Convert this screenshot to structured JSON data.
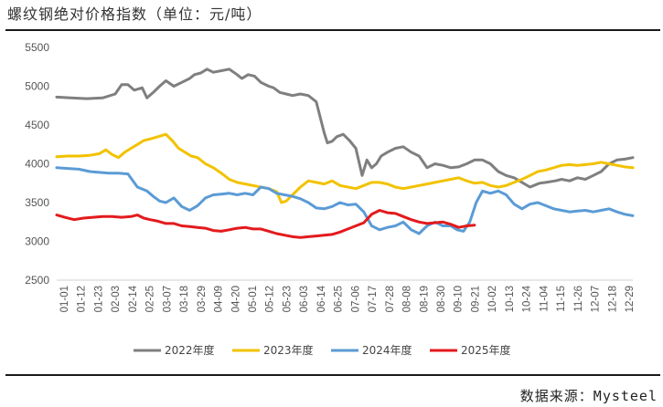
{
  "title": "螺纹钢绝对价格指数（单位：元/吨）",
  "source": "数据来源：Mysteel",
  "chart_data": {
    "type": "line",
    "title": "螺纹钢绝对价格指数（单位：元/吨）",
    "xlabel": "",
    "ylabel": "",
    "ylim": [
      2500,
      5500
    ],
    "yticks": [
      2500,
      3000,
      3500,
      4000,
      4500,
      5000,
      5500
    ],
    "grid": false,
    "legend_position": "bottom",
    "x_tick_labels": [
      "01-01",
      "01-12",
      "01-23",
      "02-03",
      "02-14",
      "02-25",
      "03-07",
      "03-18",
      "03-29",
      "04-09",
      "04-20",
      "05-01",
      "05-12",
      "05-23",
      "06-03",
      "06-14",
      "06-25",
      "07-06",
      "07-17",
      "07-28",
      "08-08",
      "08-19",
      "08-30",
      "09-10",
      "09-21",
      "10-02",
      "10-13",
      "10-24",
      "11-04",
      "11-15",
      "11-26",
      "12-07",
      "12-18",
      "12-29"
    ],
    "x_unit": "day_of_year",
    "series": [
      {
        "name": "2022年度",
        "color": "#7f7f7f",
        "x": [
          1,
          10,
          20,
          30,
          38,
          42,
          46,
          50,
          55,
          58,
          62,
          66,
          70,
          75,
          80,
          85,
          88,
          92,
          96,
          100,
          105,
          110,
          115,
          118,
          122,
          126,
          130,
          135,
          138,
          142,
          146,
          150,
          155,
          160,
          165,
          170,
          172,
          175,
          178,
          182,
          186,
          190,
          194,
          197,
          200,
          203,
          206,
          210,
          215,
          220,
          225,
          230,
          235,
          240,
          245,
          250,
          255,
          260,
          265,
          270,
          275,
          280,
          285,
          290,
          300,
          306,
          310,
          316,
          320,
          325,
          330,
          335,
          340,
          345,
          350,
          355,
          360,
          365
        ],
        "y": [
          4860,
          4850,
          4840,
          4850,
          4900,
          5020,
          5020,
          4950,
          4980,
          4850,
          4920,
          5000,
          5070,
          5000,
          5050,
          5100,
          5150,
          5170,
          5220,
          5180,
          5200,
          5220,
          5150,
          5100,
          5150,
          5130,
          5050,
          5000,
          4980,
          4920,
          4900,
          4880,
          4900,
          4880,
          4800,
          4400,
          4270,
          4290,
          4350,
          4380,
          4300,
          4200,
          3850,
          4050,
          3950,
          4000,
          4100,
          4150,
          4200,
          4220,
          4150,
          4100,
          3950,
          4000,
          3980,
          3950,
          3960,
          4000,
          4050,
          4050,
          4000,
          3900,
          3850,
          3820,
          3700,
          3750,
          3760,
          3780,
          3800,
          3780,
          3820,
          3800,
          3850,
          3900,
          4000,
          4050,
          4060,
          4080
        ]
      },
      {
        "name": "2023年度",
        "color": "#f2c200",
        "x": [
          1,
          8,
          15,
          22,
          28,
          32,
          36,
          40,
          44,
          48,
          52,
          56,
          60,
          65,
          70,
          74,
          78,
          82,
          86,
          90,
          95,
          100,
          105,
          110,
          115,
          120,
          125,
          130,
          135,
          140,
          143,
          146,
          150,
          155,
          160,
          165,
          170,
          175,
          180,
          185,
          190,
          195,
          200,
          205,
          210,
          215,
          220,
          225,
          230,
          235,
          240,
          245,
          250,
          255,
          260,
          265,
          270,
          275,
          280,
          285,
          290,
          295,
          300,
          305,
          310,
          315,
          320,
          325,
          330,
          335,
          340,
          345,
          350,
          355,
          360,
          365
        ],
        "y": [
          4090,
          4100,
          4100,
          4110,
          4130,
          4180,
          4120,
          4080,
          4150,
          4200,
          4250,
          4300,
          4320,
          4350,
          4380,
          4300,
          4200,
          4150,
          4100,
          4080,
          4000,
          3950,
          3880,
          3800,
          3760,
          3740,
          3720,
          3700,
          3680,
          3640,
          3500,
          3520,
          3600,
          3700,
          3780,
          3760,
          3740,
          3780,
          3720,
          3700,
          3680,
          3720,
          3760,
          3760,
          3740,
          3700,
          3680,
          3700,
          3720,
          3740,
          3760,
          3780,
          3800,
          3820,
          3780,
          3750,
          3760,
          3720,
          3700,
          3720,
          3760,
          3800,
          3850,
          3900,
          3920,
          3950,
          3980,
          3990,
          3980,
          3990,
          4000,
          4020,
          4000,
          3980,
          3960,
          3950
        ]
      },
      {
        "name": "2024年度",
        "color": "#5b9bd5",
        "x": [
          1,
          8,
          15,
          22,
          28,
          34,
          40,
          46,
          52,
          58,
          62,
          66,
          70,
          75,
          80,
          85,
          90,
          95,
          100,
          105,
          110,
          115,
          120,
          125,
          130,
          135,
          140,
          145,
          150,
          155,
          160,
          165,
          170,
          175,
          180,
          185,
          190,
          195,
          200,
          205,
          210,
          215,
          220,
          225,
          230,
          235,
          240,
          245,
          250,
          254,
          258,
          262,
          266,
          270,
          275,
          280,
          285,
          290,
          295,
          300,
          305,
          310,
          315,
          320,
          325,
          330,
          335,
          340,
          345,
          350,
          355,
          360,
          365
        ],
        "y": [
          3950,
          3940,
          3930,
          3900,
          3890,
          3880,
          3880,
          3870,
          3700,
          3650,
          3580,
          3520,
          3500,
          3560,
          3450,
          3400,
          3460,
          3560,
          3600,
          3610,
          3620,
          3600,
          3620,
          3600,
          3700,
          3680,
          3620,
          3600,
          3580,
          3550,
          3500,
          3430,
          3420,
          3450,
          3500,
          3470,
          3480,
          3380,
          3200,
          3150,
          3180,
          3200,
          3250,
          3150,
          3100,
          3200,
          3250,
          3200,
          3200,
          3150,
          3130,
          3250,
          3500,
          3650,
          3620,
          3650,
          3600,
          3480,
          3420,
          3480,
          3500,
          3460,
          3420,
          3400,
          3380,
          3390,
          3400,
          3380,
          3400,
          3420,
          3380,
          3350,
          3330
        ]
      },
      {
        "name": "2025年度",
        "color": "#e31a1c",
        "x": [
          1,
          6,
          12,
          18,
          24,
          30,
          36,
          42,
          48,
          52,
          56,
          60,
          65,
          70,
          75,
          80,
          85,
          90,
          95,
          100,
          105,
          110,
          115,
          120,
          125,
          130,
          135,
          140,
          145,
          150,
          155,
          160,
          165,
          170,
          175,
          180,
          185,
          190,
          195,
          200,
          205,
          210,
          215,
          220,
          225,
          230,
          235,
          240,
          245,
          250,
          255,
          260,
          265
        ],
        "y": [
          3340,
          3310,
          3280,
          3300,
          3310,
          3320,
          3320,
          3310,
          3320,
          3340,
          3300,
          3280,
          3260,
          3230,
          3230,
          3200,
          3190,
          3180,
          3170,
          3140,
          3130,
          3150,
          3170,
          3180,
          3160,
          3160,
          3130,
          3100,
          3080,
          3060,
          3050,
          3060,
          3070,
          3080,
          3090,
          3120,
          3160,
          3200,
          3240,
          3350,
          3400,
          3370,
          3360,
          3320,
          3280,
          3250,
          3230,
          3240,
          3250,
          3220,
          3180,
          3200,
          3210
        ]
      }
    ]
  }
}
